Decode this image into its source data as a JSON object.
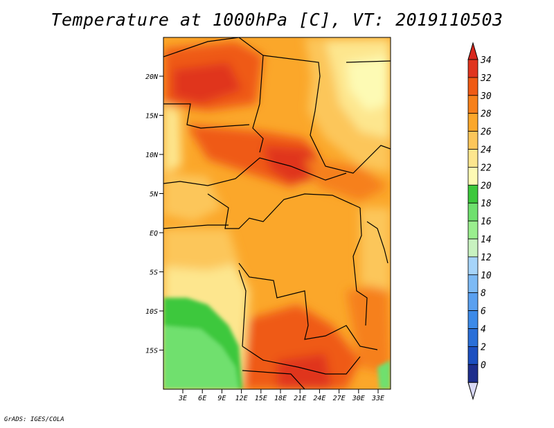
{
  "title": "Temperature at 1000hPa [C], VT: 2019110503",
  "credit": "GrADS: IGES/COLA",
  "map": {
    "lat_labels": [
      "20N",
      "15N",
      "10N",
      "5N",
      "EQ",
      "5S",
      "10S",
      "15S"
    ],
    "lon_labels": [
      "3E",
      "6E",
      "9E",
      "12E",
      "15E",
      "18E",
      "21E",
      "24E",
      "27E",
      "30E",
      "33E"
    ]
  },
  "colorbar": {
    "labels": [
      "34",
      "32",
      "30",
      "28",
      "26",
      "24",
      "22",
      "20",
      "18",
      "16",
      "14",
      "12",
      "10",
      "8",
      "6",
      "4",
      "2",
      "0"
    ],
    "colors": [
      "#1e2e8c",
      "#1c4fc0",
      "#2a6fd8",
      "#3c8ae8",
      "#5aa0f0",
      "#7dbaf5",
      "#a6d4fa",
      "#c8f2c0",
      "#9aee8e",
      "#6fe06e",
      "#3cc83c",
      "#fdfab4",
      "#fde68e",
      "#fcc65a",
      "#fba72a",
      "#f6801a",
      "#ef5a14",
      "#e0341e"
    ],
    "under_color": "#d8d8f4",
    "over_color": "#d8281e"
  }
}
